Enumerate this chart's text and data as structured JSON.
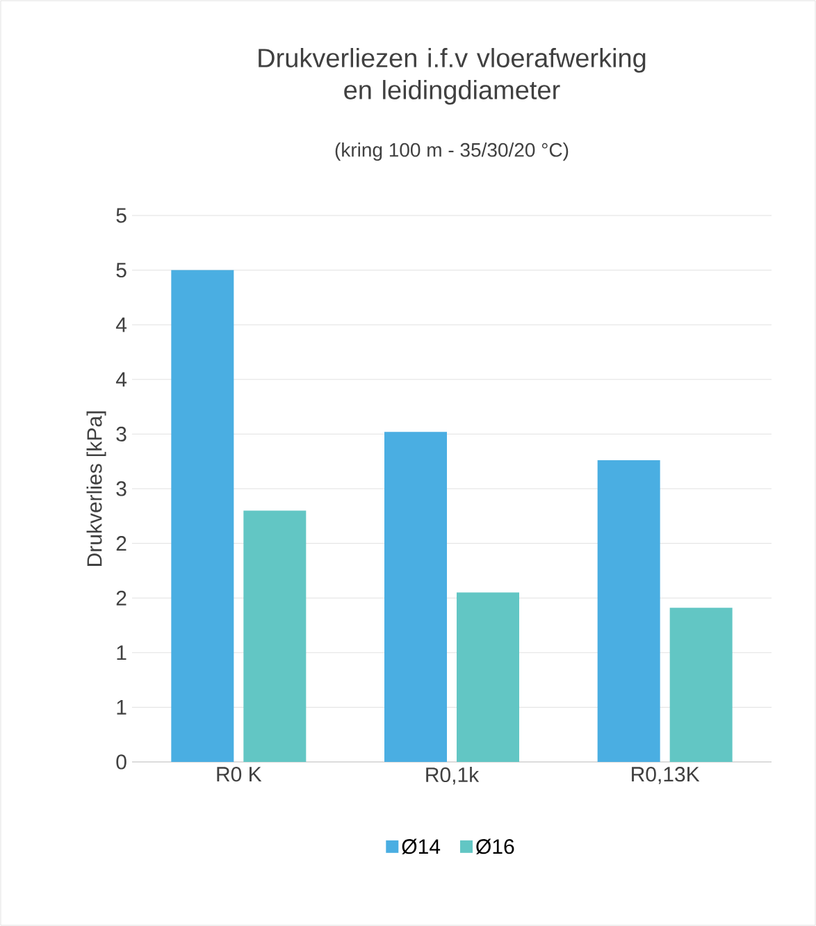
{
  "chart_data": {
    "type": "bar",
    "title": "Drukverliezen i.f.v vloerafwerking en leidingdiameter",
    "subtitle": "(kring 100 m - 35/30/20 °C)",
    "ylabel": "Drukverlies [kPa]",
    "categories": [
      "R0 K",
      "R0,1k",
      "R0,13K"
    ],
    "series": [
      {
        "name": "Ø14",
        "color": "#4aaee2",
        "values": [
          4.5,
          3.02,
          2.76
        ]
      },
      {
        "name": "Ø16",
        "color": "#62c6c4",
        "values": [
          2.3,
          1.55,
          1.41
        ]
      }
    ],
    "ylim": [
      0,
      5
    ],
    "yticks": [
      0,
      {
        "value": 0.5,
        "label": "1"
      },
      1,
      {
        "value": 1.5,
        "label": "2"
      },
      2,
      {
        "value": 2.5,
        "label": "3"
      },
      3,
      {
        "value": 3.5,
        "label": "4"
      },
      4,
      {
        "value": 4.5,
        "label": "5"
      },
      5
    ],
    "grid": "y",
    "legend": "bottom"
  }
}
